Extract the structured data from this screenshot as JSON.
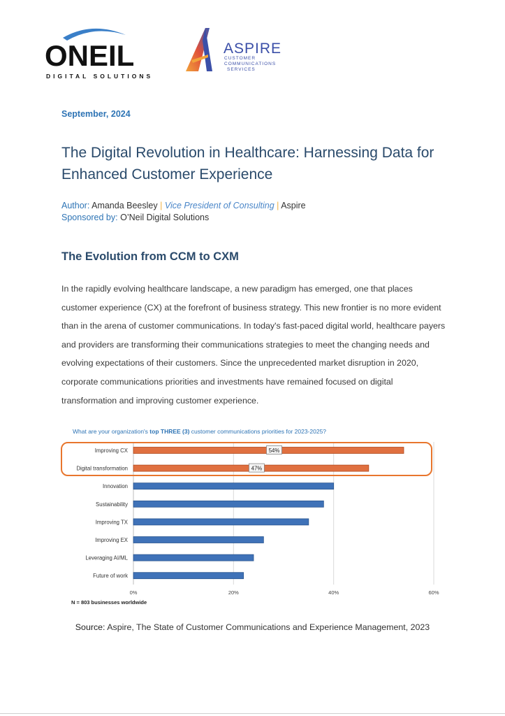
{
  "header": {
    "oneil_logo_text": "ONEIL",
    "oneil_logo_subtext": "DIGITAL SOLUTIONS",
    "aspire_logo_text": "ASPIRE",
    "aspire_logo_sub1": "CUSTOMER",
    "aspire_logo_sub2": "COMMUNICATIONS",
    "aspire_logo_sub3": "SERVICES"
  },
  "date": "September, 2024",
  "title": "The Digital Revolution in Healthcare: Harnessing Data for Enhanced Customer Experience",
  "author": {
    "label": "Author:",
    "name": "Amanda Beesley",
    "sep1": "|",
    "role": "Vice President of Consulting",
    "sep2": "|",
    "org": "Aspire"
  },
  "sponsor": {
    "label": "Sponsored by:",
    "name": "O’Neil Digital Solutions"
  },
  "section_heading": "The Evolution from CCM to CXM",
  "body_paragraph": "In the rapidly evolving healthcare landscape, a new paradigm has emerged, one that places customer experience (CX) at the forefront of business strategy.  This new frontier is no more evident than in the arena of customer communications.  In today's fast-paced digital world, healthcare payers and providers are transforming their communications strategies to meet the changing needs and evolving expectations of their customers.  Since the unprecedented market disruption in 2020, corporate communications priorities and investments have remained focused on digital transformation and improving customer experience.",
  "chart_data": {
    "type": "bar",
    "orientation": "horizontal",
    "title_prefix": "What are your organization's ",
    "title_emphasis": "top THREE (3)",
    "title_suffix": " customer communications priorities for 2023-2025?",
    "categories": [
      "Improving CX",
      "Digital transformation",
      "Innovation",
      "Sustainability",
      "Improving TX",
      "Improving EX",
      "Leveraging AI/ML",
      "Future of work"
    ],
    "values": [
      54,
      47,
      40,
      38,
      35,
      26,
      24,
      22
    ],
    "highlighted": [
      true,
      true,
      false,
      false,
      false,
      false,
      false,
      false
    ],
    "data_labels": [
      "54%",
      "47%",
      "",
      "",
      "",
      "",
      "",
      ""
    ],
    "xlim": [
      0,
      60
    ],
    "xticks": [
      "0%",
      "20%",
      "40%",
      "60%"
    ],
    "xtick_values": [
      0,
      20,
      40,
      60
    ],
    "grid": true,
    "colors": {
      "highlight": "#e07040",
      "normal": "#3f72b8",
      "outline": "#e8762d",
      "title": "#2e74b5"
    },
    "note": "N = 803 businesses worldwide"
  },
  "source": {
    "label": "Source:",
    "text": " Aspire, The State of Customer Communications and Experience Management, 2023"
  }
}
